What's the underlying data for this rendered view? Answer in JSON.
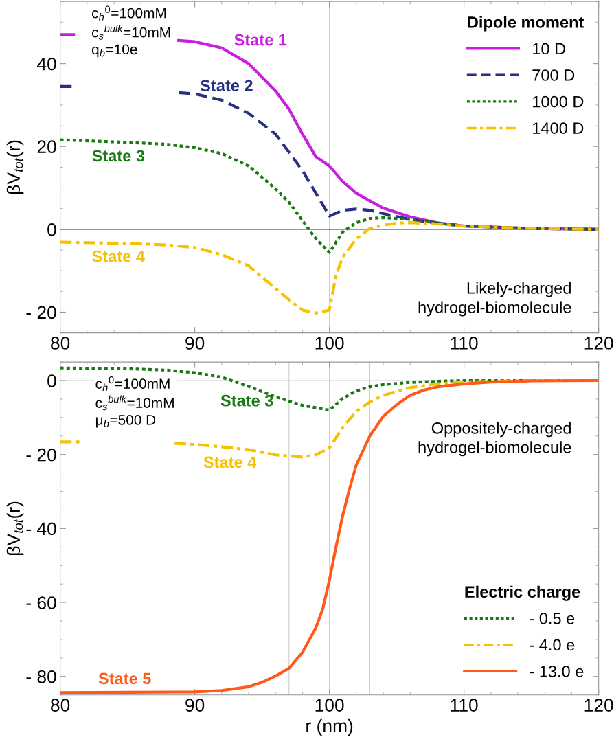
{
  "chart_data": [
    {
      "type": "line",
      "ylabel": "βV$_{tot}$(r)",
      "legend_title": "Dipole moment",
      "legend": "top right",
      "xlim": [
        80,
        120
      ],
      "xticks": [
        80,
        90,
        100,
        110,
        120
      ],
      "ylim": [
        -25,
        55
      ],
      "yticks": [
        {
          "value": -20,
          "label": "- 20"
        },
        0,
        20,
        40
      ],
      "series": [
        {
          "name": "10 D",
          "color": "#c81ee0",
          "line_style": "solid",
          "x": [
            80,
            81,
            85,
            88.8,
            90,
            92,
            94,
            96,
            97,
            98,
            99,
            100,
            101,
            102,
            104,
            106,
            108,
            110,
            115,
            120
          ],
          "values": [
            47,
            47,
            null,
            45.6,
            45.3,
            43.8,
            40,
            33.4,
            29,
            23,
            17.5,
            15.3,
            11.5,
            8.7,
            5.1,
            3,
            1.6,
            0.8,
            0.2,
            0
          ]
        },
        {
          "name": "700 D",
          "color": "#27317f",
          "line_style": "dashed",
          "x": [
            80,
            81,
            85,
            88.8,
            90,
            92,
            94,
            96,
            98,
            99,
            100,
            101,
            102,
            103,
            104,
            106,
            108,
            110,
            115,
            120
          ],
          "values": [
            34.5,
            34.5,
            null,
            33,
            32.7,
            31.2,
            28,
            23,
            14.2,
            8.7,
            3.2,
            4.6,
            4.9,
            4.6,
            3.8,
            2.4,
            1.5,
            0.8,
            0.2,
            0
          ]
        },
        {
          "name": "1000 D",
          "color": "#1a7a12",
          "line_style": "dotted",
          "x": [
            80,
            85,
            88,
            90,
            92,
            94,
            96,
            97,
            98,
            99,
            100,
            101,
            102,
            103,
            104,
            105,
            106,
            108,
            110,
            115,
            120
          ],
          "values": [
            21.6,
            21,
            20.5,
            19.7,
            18.3,
            15.3,
            9.8,
            6.5,
            2.1,
            -2.3,
            -5.6,
            -0.6,
            1.6,
            2.6,
            2.8,
            2.6,
            2.4,
            1.5,
            0.8,
            0.2,
            0
          ]
        },
        {
          "name": "1400 D",
          "color": "#f7c000",
          "line_style": "dashdot",
          "x": [
            80,
            85,
            88,
            90,
            92,
            94,
            96,
            97,
            98,
            99,
            100,
            100.5,
            101,
            102,
            103,
            104,
            105,
            106,
            108,
            110,
            115,
            120
          ],
          "values": [
            -3.1,
            -3.4,
            -3.8,
            -4.4,
            -6.1,
            -8.8,
            -14.3,
            -17,
            -19.5,
            -20.2,
            -19.5,
            -11,
            -6.6,
            -2.3,
            0.2,
            1,
            1.5,
            1.6,
            1.3,
            0.8,
            0.2,
            0
          ]
        }
      ],
      "ref_lines": [
        {
          "axis": "x",
          "value": 100,
          "color": "#cccccc"
        },
        {
          "axis": "y",
          "value": 0,
          "color": "#333333"
        }
      ],
      "annotations": [
        "State 1",
        "State 2",
        "State 3",
        "State 4",
        "c$_{h}$$^{0}$=100mM\nc$_{s}$$^{bulk}$=10mM\nq$_{b}$=10e",
        "Likely-charged\nhydrogel-biomolecule"
      ]
    },
    {
      "type": "line",
      "xlabel": "r (nm)",
      "ylabel": "βV$_{tot}$(r)",
      "legend_title": "Electric charge",
      "legend": "bottom right",
      "xlim": [
        80,
        120
      ],
      "xticks": [
        80,
        90,
        100,
        110,
        120
      ],
      "ylim": [
        -85,
        5
      ],
      "yticks": [
        {
          "value": -80,
          "label": "- 80"
        },
        {
          "value": -60,
          "label": "- 60"
        },
        {
          "value": -40,
          "label": "- 40"
        },
        {
          "value": -20,
          "label": "- 20"
        },
        0
      ],
      "series": [
        {
          "name": "- 0.5 e",
          "color": "#1a7a12",
          "line_style": "dotted",
          "x": [
            80,
            85,
            88,
            90,
            92,
            94,
            96,
            98,
            100,
            101,
            102,
            103,
            104,
            106,
            108,
            110,
            120
          ],
          "values": [
            3.4,
            3.2,
            2.8,
            2.1,
            0.9,
            -1.6,
            -4.4,
            -6.7,
            -8,
            -4.8,
            -2.8,
            -1.7,
            -1.1,
            -0.5,
            -0.2,
            0,
            0
          ]
        },
        {
          "name": "- 4.0 e",
          "color": "#f7c000",
          "line_style": "dashdot",
          "x": [
            80,
            81.5,
            85,
            88.5,
            90,
            92,
            94,
            96,
            98,
            99,
            100,
            101,
            102,
            103,
            104,
            106,
            108,
            110,
            115,
            120
          ],
          "values": [
            -16.6,
            -16.6,
            null,
            -17,
            -17.3,
            -17.9,
            -18.7,
            -20.1,
            -20.7,
            -20.1,
            -18.2,
            -12.6,
            -8.3,
            -5.8,
            -4,
            -1.9,
            -0.9,
            -0.4,
            0,
            0
          ]
        },
        {
          "name": "- 13.0 e",
          "color": "#ff5a1a",
          "line_style": "solid",
          "x": [
            80,
            85,
            90,
            92,
            94,
            95,
            96,
            97,
            98,
            99,
            99.5,
            100,
            100.5,
            101,
            101.5,
            102,
            103,
            104,
            105,
            106,
            107,
            108,
            110,
            112,
            115,
            120
          ],
          "values": [
            -84.4,
            -84.3,
            -84.2,
            -83.8,
            -82.8,
            -81.6,
            -79.9,
            -77.8,
            -73.5,
            -66.8,
            -61.8,
            -54,
            -44.8,
            -36.3,
            -29.2,
            -22.8,
            -15,
            -9.7,
            -6.5,
            -4,
            -2.6,
            -1.7,
            -0.9,
            -0.4,
            -0.1,
            0
          ]
        }
      ],
      "ref_lines": [
        {
          "axis": "x",
          "value": 97,
          "color": "#cccccc"
        },
        {
          "axis": "x",
          "value": 100,
          "color": "#cccccc"
        },
        {
          "axis": "x",
          "value": 103,
          "color": "#cccccc"
        },
        {
          "axis": "y",
          "value": 0,
          "color": "#cccccc"
        }
      ],
      "annotations": [
        "State 3",
        "State 4",
        "State 5",
        "c$_{h}$$^{0}$=100mM\nc$_{s}$$^{bulk}$=10mM\nμ$_{b}$=500 D",
        "Oppositely-charged\nhydrogel-biomolecule"
      ]
    }
  ]
}
